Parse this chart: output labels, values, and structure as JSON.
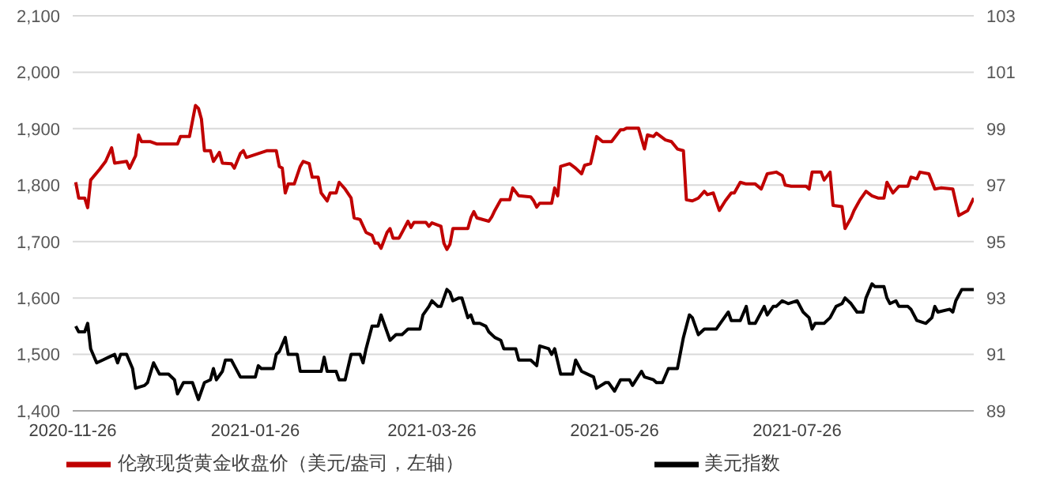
{
  "chart_data": {
    "type": "line",
    "xlim": [
      "2020-11-26",
      "2021-09-23"
    ],
    "xticks": [
      "2020-11-26",
      "2021-01-26",
      "2021-03-26",
      "2021-05-26",
      "2021-07-26"
    ],
    "ylim": [
      1400,
      2100
    ],
    "yticks": [
      {
        "value": 1400,
        "label": "1,400"
      },
      {
        "value": 1500,
        "label": "1,500"
      },
      {
        "value": 1600,
        "label": "1,600"
      },
      {
        "value": 1700,
        "label": "1,700"
      },
      {
        "value": 1800,
        "label": "1,800"
      },
      {
        "value": 1900,
        "label": "1,900"
      },
      {
        "value": 2000,
        "label": "2,000"
      },
      {
        "value": 2100,
        "label": "2,100"
      }
    ],
    "y2lim": [
      89,
      103
    ],
    "y2ticks": [
      89,
      91,
      93,
      95,
      97,
      99,
      101,
      103
    ],
    "grid": "y",
    "legend": "bottom",
    "marker": "none",
    "line_style": "solid",
    "series": [
      {
        "name": "伦敦现货黄金收盘价（美元/盎司，左轴）",
        "color": "#c00000",
        "x": [
          "2020-11-27",
          "2020-11-28",
          "2020-11-30",
          "2020-12-01",
          "2020-12-02",
          "2020-12-05",
          "2020-12-07",
          "2020-12-09",
          "2020-12-10",
          "2020-12-14",
          "2020-12-15",
          "2020-12-17",
          "2020-12-18",
          "2020-12-19",
          "2020-12-22",
          "2020-12-24",
          "2020-12-31",
          "2021-01-01",
          "2021-01-04",
          "2021-01-06",
          "2021-01-07",
          "2021-01-08",
          "2021-01-09",
          "2021-01-11",
          "2021-01-12",
          "2021-01-14",
          "2021-01-15",
          "2021-01-18",
          "2021-01-19",
          "2021-01-21",
          "2021-01-22",
          "2021-01-23",
          "2021-01-26",
          "2021-01-30",
          "2021-02-02",
          "2021-02-03",
          "2021-02-04",
          "2021-02-05",
          "2021-02-06",
          "2021-02-08",
          "2021-02-10",
          "2021-02-11",
          "2021-02-13",
          "2021-02-14",
          "2021-02-16",
          "2021-02-17",
          "2021-02-19",
          "2021-02-20",
          "2021-02-22",
          "2021-02-23",
          "2021-02-25",
          "2021-02-27",
          "2021-02-28",
          "2021-03-02",
          "2021-03-04",
          "2021-03-06",
          "2021-03-07",
          "2021-03-08",
          "2021-03-09",
          "2021-03-11",
          "2021-03-12",
          "2021-03-13",
          "2021-03-15",
          "2021-03-18",
          "2021-03-19",
          "2021-03-20",
          "2021-03-24",
          "2021-03-25",
          "2021-03-26",
          "2021-03-29",
          "2021-03-30",
          "2021-03-31",
          "2021-04-01",
          "2021-04-02",
          "2021-04-07",
          "2021-04-08",
          "2021-04-09",
          "2021-04-10",
          "2021-04-14",
          "2021-04-15",
          "2021-04-16",
          "2021-04-18",
          "2021-04-21",
          "2021-04-22",
          "2021-04-24",
          "2021-04-28",
          "2021-04-29",
          "2021-04-30",
          "2021-05-01",
          "2021-05-05",
          "2021-05-06",
          "2021-05-07",
          "2021-05-08",
          "2021-05-11",
          "2021-05-13",
          "2021-05-15",
          "2021-05-16",
          "2021-05-18",
          "2021-05-19",
          "2021-05-20",
          "2021-05-22",
          "2021-05-25",
          "2021-05-28",
          "2021-05-29",
          "2021-05-30",
          "2021-06-03",
          "2021-06-05",
          "2021-06-06",
          "2021-06-08",
          "2021-06-09",
          "2021-06-12",
          "2021-06-14",
          "2021-06-16",
          "2021-06-18",
          "2021-06-19",
          "2021-06-21",
          "2021-06-23",
          "2021-06-25",
          "2021-06-26",
          "2021-06-28",
          "2021-06-30",
          "2021-07-02",
          "2021-07-04",
          "2021-07-05",
          "2021-07-07",
          "2021-07-09",
          "2021-07-12",
          "2021-07-14",
          "2021-07-16",
          "2021-07-19",
          "2021-07-21",
          "2021-07-22",
          "2021-07-24",
          "2021-07-29",
          "2021-07-30",
          "2021-07-31",
          "2021-08-03",
          "2021-08-04",
          "2021-08-06",
          "2021-08-07",
          "2021-08-10",
          "2021-08-11",
          "2021-08-13",
          "2021-08-14",
          "2021-08-16",
          "2021-08-18",
          "2021-08-20",
          "2021-08-22",
          "2021-08-24",
          "2021-08-25",
          "2021-08-27",
          "2021-08-29",
          "2021-09-01",
          "2021-09-02",
          "2021-09-04",
          "2021-09-05",
          "2021-09-08",
          "2021-09-10",
          "2021-09-12",
          "2021-09-16",
          "2021-09-18",
          "2021-09-21",
          "2021-09-23"
        ],
        "values": [
          1805,
          1777,
          1777,
          1760,
          1809,
          1828,
          1842,
          1866,
          1839,
          1842,
          1830,
          1852,
          1889,
          1877,
          1877,
          1873,
          1873,
          1886,
          1886,
          1941,
          1936,
          1917,
          1861,
          1861,
          1842,
          1858,
          1839,
          1838,
          1830,
          1856,
          1861,
          1849,
          1854,
          1861,
          1861,
          1833,
          1830,
          1786,
          1802,
          1802,
          1833,
          1842,
          1838,
          1814,
          1814,
          1786,
          1772,
          1786,
          1786,
          1805,
          1793,
          1777,
          1742,
          1739,
          1716,
          1711,
          1697,
          1697,
          1688,
          1716,
          1723,
          1706,
          1706,
          1736,
          1725,
          1734,
          1734,
          1727,
          1733,
          1727,
          1697,
          1686,
          1695,
          1723,
          1723,
          1742,
          1753,
          1742,
          1736,
          1744,
          1755,
          1774,
          1774,
          1795,
          1781,
          1779,
          1772,
          1761,
          1768,
          1768,
          1795,
          1781,
          1833,
          1838,
          1830,
          1820,
          1835,
          1838,
          1861,
          1886,
          1877,
          1877,
          1898,
          1898,
          1901,
          1901,
          1864,
          1889,
          1886,
          1892,
          1880,
          1877,
          1864,
          1861,
          1774,
          1772,
          1777,
          1789,
          1783,
          1786,
          1755,
          1772,
          1786,
          1786,
          1805,
          1802,
          1802,
          1793,
          1820,
          1823,
          1817,
          1800,
          1798,
          1798,
          1793,
          1823,
          1823,
          1809,
          1823,
          1764,
          1762,
          1723,
          1742,
          1755,
          1774,
          1789,
          1781,
          1777,
          1777,
          1805,
          1786,
          1798,
          1798,
          1814,
          1811,
          1823,
          1820,
          1793,
          1795,
          1793,
          1746,
          1755,
          1777
        ]
      },
      {
        "name": "美元指数",
        "color": "#000000",
        "axis": "y2",
        "x": [
          "2020-11-27",
          "2020-11-28",
          "2020-11-30",
          "2020-12-01",
          "2020-12-02",
          "2020-12-04",
          "2020-12-06",
          "2020-12-08",
          "2020-12-10",
          "2020-12-11",
          "2020-12-12",
          "2020-12-14",
          "2020-12-16",
          "2020-12-17",
          "2020-12-20",
          "2020-12-21",
          "2020-12-23",
          "2020-12-25",
          "2020-12-28",
          "2020-12-30",
          "2020-12-31",
          "2021-01-02",
          "2021-01-05",
          "2021-01-07",
          "2021-01-09",
          "2021-01-11",
          "2021-01-12",
          "2021-01-13",
          "2021-01-15",
          "2021-01-16",
          "2021-01-18",
          "2021-01-19",
          "2021-01-21",
          "2021-01-23",
          "2021-01-26",
          "2021-01-27",
          "2021-01-28",
          "2021-02-01",
          "2021-02-02",
          "2021-02-03",
          "2021-02-05",
          "2021-02-06",
          "2021-02-09",
          "2021-02-10",
          "2021-02-15",
          "2021-02-17",
          "2021-02-18",
          "2021-02-19",
          "2021-02-22",
          "2021-02-23",
          "2021-02-25",
          "2021-02-27",
          "2021-03-02",
          "2021-03-03",
          "2021-03-04",
          "2021-03-06",
          "2021-03-08",
          "2021-03-09",
          "2021-03-11",
          "2021-03-12",
          "2021-03-14",
          "2021-03-16",
          "2021-03-18",
          "2021-03-19",
          "2021-03-20",
          "2021-03-22",
          "2021-03-23",
          "2021-03-25",
          "2021-03-26",
          "2021-03-28",
          "2021-03-29",
          "2021-03-31",
          "2021-04-01",
          "2021-04-02",
          "2021-04-04",
          "2021-04-05",
          "2021-04-07",
          "2021-04-08",
          "2021-04-09",
          "2021-04-11",
          "2021-04-13",
          "2021-04-14",
          "2021-04-16",
          "2021-04-18",
          "2021-04-19",
          "2021-04-22",
          "2021-04-23",
          "2021-04-24",
          "2021-04-28",
          "2021-04-30",
          "2021-05-01",
          "2021-05-04",
          "2021-05-05",
          "2021-05-06",
          "2021-05-08",
          "2021-05-12",
          "2021-05-13",
          "2021-05-15",
          "2021-05-17",
          "2021-05-19",
          "2021-05-20",
          "2021-05-23",
          "2021-05-24",
          "2021-05-26",
          "2021-05-28",
          "2021-05-31",
          "2021-06-01",
          "2021-06-04",
          "2021-06-05",
          "2021-06-08",
          "2021-06-09",
          "2021-06-11",
          "2021-06-13",
          "2021-06-16",
          "2021-06-18",
          "2021-06-20",
          "2021-06-21",
          "2021-06-23",
          "2021-06-25",
          "2021-06-29",
          "2021-07-01",
          "2021-07-03",
          "2021-07-04",
          "2021-07-07",
          "2021-07-09",
          "2021-07-10",
          "2021-07-12",
          "2021-07-15",
          "2021-07-16",
          "2021-07-18",
          "2021-07-19",
          "2021-07-21",
          "2021-07-23",
          "2021-07-26",
          "2021-07-28",
          "2021-07-30",
          "2021-07-31",
          "2021-08-01",
          "2021-08-04",
          "2021-08-06",
          "2021-08-08",
          "2021-08-10",
          "2021-08-11",
          "2021-08-13",
          "2021-08-15",
          "2021-08-17",
          "2021-08-18",
          "2021-08-20",
          "2021-08-21",
          "2021-08-24",
          "2021-08-25",
          "2021-08-26",
          "2021-08-28",
          "2021-08-29",
          "2021-09-01",
          "2021-09-02",
          "2021-09-04",
          "2021-09-07",
          "2021-09-09",
          "2021-09-10",
          "2021-09-11",
          "2021-09-15",
          "2021-09-16",
          "2021-09-17",
          "2021-09-19",
          "2021-09-23"
        ],
        "values": [
          92.0,
          91.8,
          91.8,
          92.1,
          91.2,
          90.7,
          90.8,
          90.9,
          91.0,
          90.7,
          91.0,
          91.0,
          90.5,
          89.8,
          89.9,
          90.0,
          90.7,
          90.3,
          90.3,
          90.1,
          89.6,
          90.0,
          90.0,
          89.4,
          90.0,
          90.1,
          90.5,
          90.1,
          90.4,
          90.8,
          90.8,
          90.6,
          90.2,
          90.2,
          90.2,
          90.6,
          90.5,
          90.5,
          91.0,
          91.1,
          91.6,
          91.0,
          91.0,
          90.4,
          90.4,
          90.4,
          90.9,
          90.4,
          90.4,
          90.1,
          90.1,
          91.0,
          91.0,
          90.7,
          91.2,
          92.0,
          92.0,
          92.4,
          91.8,
          91.5,
          91.7,
          91.7,
          91.9,
          91.9,
          91.9,
          91.9,
          92.4,
          92.7,
          92.9,
          92.7,
          92.7,
          93.3,
          93.2,
          92.9,
          93.0,
          93.0,
          92.3,
          92.4,
          92.1,
          92.1,
          92.0,
          91.8,
          91.6,
          91.5,
          91.2,
          91.2,
          91.2,
          90.8,
          90.8,
          90.6,
          91.3,
          91.2,
          91.0,
          91.2,
          90.3,
          90.3,
          90.8,
          90.4,
          90.3,
          90.2,
          89.8,
          90.0,
          90.0,
          89.7,
          90.1,
          90.1,
          89.9,
          90.4,
          90.2,
          90.1,
          90.0,
          90.0,
          90.5,
          90.5,
          91.6,
          92.4,
          92.3,
          91.7,
          91.9,
          91.9,
          92.2,
          92.5,
          92.2,
          92.2,
          92.7,
          92.1,
          92.1,
          92.7,
          92.4,
          92.7,
          92.7,
          92.9,
          92.8,
          92.9,
          92.5,
          92.3,
          91.9,
          92.1,
          92.1,
          92.3,
          92.7,
          92.8,
          93.0,
          92.8,
          92.5,
          92.5,
          93.0,
          93.5,
          93.4,
          93.4,
          93.0,
          92.8,
          92.9,
          92.7,
          92.7,
          92.6,
          92.2,
          92.1,
          92.3,
          92.7,
          92.5,
          92.6,
          92.5,
          92.9,
          93.3,
          93.3
        ]
      }
    ]
  }
}
